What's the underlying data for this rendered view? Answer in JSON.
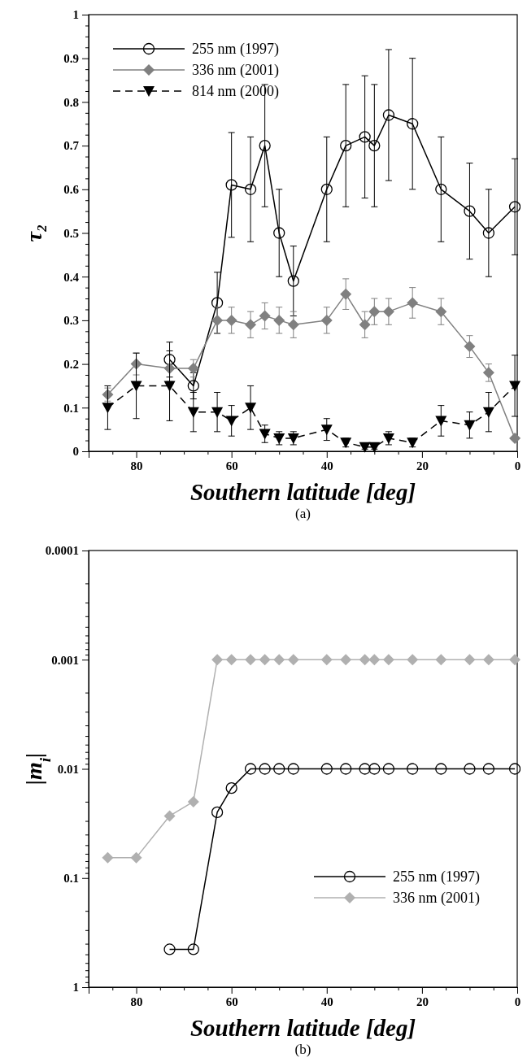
{
  "chart_data": [
    {
      "type": "line",
      "xlabel": "Southern latitude [deg]",
      "ylabel": "τ₂",
      "annotations": [
        "(a)"
      ],
      "legend": "top left",
      "xlim": [
        90,
        0
      ],
      "xticks": [
        {
          "value": 85,
          "label": null
        },
        80,
        {
          "value": 75,
          "label": null
        },
        {
          "value": 70,
          "label": null
        },
        {
          "value": 65,
          "label": null
        },
        60,
        {
          "value": 55,
          "label": null
        },
        {
          "value": 50,
          "label": null
        },
        {
          "value": 45,
          "label": null
        },
        40,
        {
          "value": 35,
          "label": null
        },
        {
          "value": 30,
          "label": null
        },
        {
          "value": 25,
          "label": null
        },
        20,
        {
          "value": 15,
          "label": null
        },
        {
          "value": 10,
          "label": null
        },
        {
          "value": 5,
          "label": null
        },
        0
      ],
      "ylim": [
        0,
        1
      ],
      "yticks": [
        0,
        {
          "value": 0.025,
          "label": null
        },
        {
          "value": 0.05,
          "label": null
        },
        {
          "value": 0.075,
          "label": null
        },
        0.1,
        {
          "value": 0.125,
          "label": null
        },
        {
          "value": 0.15,
          "label": null
        },
        {
          "value": 0.175,
          "label": null
        },
        0.2,
        {
          "value": 0.225,
          "label": null
        },
        {
          "value": 0.25,
          "label": null
        },
        {
          "value": 0.275,
          "label": null
        },
        0.3,
        {
          "value": 0.325,
          "label": null
        },
        {
          "value": 0.35,
          "label": null
        },
        {
          "value": 0.375,
          "label": null
        },
        0.4,
        {
          "value": 0.425,
          "label": null
        },
        {
          "value": 0.45,
          "label": null
        },
        {
          "value": 0.475,
          "label": null
        },
        0.5,
        {
          "value": 0.525,
          "label": null
        },
        {
          "value": 0.55,
          "label": null
        },
        {
          "value": 0.575,
          "label": null
        },
        0.6,
        {
          "value": 0.625,
          "label": null
        },
        {
          "value": 0.65,
          "label": null
        },
        {
          "value": 0.675,
          "label": null
        },
        0.7,
        {
          "value": 0.725,
          "label": null
        },
        {
          "value": 0.75,
          "label": null
        },
        {
          "value": 0.775,
          "label": null
        },
        0.8,
        {
          "value": 0.825,
          "label": null
        },
        {
          "value": 0.85,
          "label": null
        },
        {
          "value": 0.875,
          "label": null
        },
        0.9,
        {
          "value": 0.925,
          "label": null
        },
        {
          "value": 0.95,
          "label": null
        },
        {
          "value": 0.975,
          "label": null
        },
        1
      ],
      "series": [
        {
          "name": "255 nm (1997)",
          "color": "#000000",
          "marker": "circle",
          "line_style": "solid",
          "x": [
            73,
            68,
            63,
            60,
            56,
            53,
            50,
            47,
            40,
            36,
            32,
            30,
            27,
            22,
            16,
            10,
            6,
            0.5
          ],
          "values": [
            0.21,
            0.15,
            0.34,
            0.61,
            0.6,
            0.7,
            0.5,
            0.39,
            0.6,
            0.7,
            0.72,
            0.7,
            0.77,
            0.75,
            0.6,
            0.55,
            0.5,
            0.56
          ],
          "errors": [
            0.04,
            0.03,
            0.07,
            0.12,
            0.12,
            0.14,
            0.1,
            0.08,
            0.12,
            0.14,
            0.14,
            0.14,
            0.15,
            0.15,
            0.12,
            0.11,
            0.1,
            0.11
          ]
        },
        {
          "name": "336 nm (2001)",
          "color": "#808080",
          "marker": "diamond",
          "line_style": "solid",
          "x": [
            86,
            80,
            73,
            68,
            63,
            60,
            56,
            53,
            50,
            47,
            40,
            36,
            32,
            30,
            27,
            22,
            16,
            10,
            6,
            0.5
          ],
          "values": [
            0.13,
            0.2,
            0.19,
            0.19,
            0.3,
            0.3,
            0.29,
            0.31,
            0.3,
            0.29,
            0.3,
            0.36,
            0.29,
            0.32,
            0.32,
            0.34,
            0.32,
            0.24,
            0.18,
            0.03
          ],
          "errors": [
            0.015,
            0.025,
            0.03,
            0.02,
            0.03,
            0.03,
            0.03,
            0.03,
            0.03,
            0.03,
            0.03,
            0.035,
            0.03,
            0.03,
            0.03,
            0.035,
            0.03,
            0.025,
            0.02,
            null
          ]
        },
        {
          "name": "814 nm (2000)",
          "color": "#000000",
          "marker": "triangle",
          "line_style": "dashed",
          "x": [
            86,
            80,
            73,
            68,
            63,
            60,
            56,
            53,
            50,
            47,
            40,
            36,
            32,
            30,
            27,
            22,
            16,
            10,
            6,
            0.5
          ],
          "values": [
            0.1,
            0.15,
            0.15,
            0.09,
            0.09,
            0.07,
            0.1,
            0.04,
            0.03,
            0.03,
            0.05,
            0.02,
            0.01,
            0.01,
            0.03,
            0.02,
            0.07,
            0.06,
            0.09,
            0.15
          ],
          "errors": [
            0.05,
            0.075,
            0.08,
            0.045,
            0.045,
            0.035,
            0.05,
            0.02,
            0.015,
            0.015,
            0.025,
            0.01,
            0.005,
            0.005,
            0.015,
            0.01,
            0.035,
            0.03,
            0.045,
            0.07
          ]
        }
      ]
    },
    {
      "type": "line",
      "xlabel": "Southern latitude [deg]",
      "ylabel": "|m$_{i}$|",
      "annotations": [
        "(b)"
      ],
      "legend": "bottom right",
      "log": true,
      "xlim": [
        90,
        0
      ],
      "xticks": [
        {
          "value": 85,
          "label": null
        },
        80,
        {
          "value": 75,
          "label": null
        },
        {
          "value": 70,
          "label": null
        },
        {
          "value": 65,
          "label": null
        },
        60,
        {
          "value": 55,
          "label": null
        },
        {
          "value": 50,
          "label": null
        },
        {
          "value": 45,
          "label": null
        },
        40,
        {
          "value": 35,
          "label": null
        },
        {
          "value": 30,
          "label": null
        },
        {
          "value": 25,
          "label": null
        },
        20,
        {
          "value": 15,
          "label": null
        },
        {
          "value": 10,
          "label": null
        },
        {
          "value": 5,
          "label": null
        },
        0
      ],
      "ylim": [
        1,
        0.0001
      ],
      "yticks": [
        0.0001,
        {
          "value": 0.0002,
          "label": null
        },
        {
          "value": 0.0003,
          "label": null
        },
        {
          "value": 0.0004,
          "label": null
        },
        {
          "value": 0.0005,
          "label": null
        },
        {
          "value": 0.0006,
          "label": null
        },
        {
          "value": 0.0007,
          "label": null
        },
        {
          "value": 0.0008,
          "label": null
        },
        {
          "value": 0.0009,
          "label": null
        },
        0.001,
        {
          "value": 0.002,
          "label": null
        },
        {
          "value": 0.003,
          "label": null
        },
        {
          "value": 0.004,
          "label": null
        },
        {
          "value": 0.005,
          "label": null
        },
        {
          "value": 0.006,
          "label": null
        },
        {
          "value": 0.007,
          "label": null
        },
        {
          "value": 0.008,
          "label": null
        },
        {
          "value": 0.009,
          "label": null
        },
        0.01,
        {
          "value": 0.02,
          "label": null
        },
        {
          "value": 0.03,
          "label": null
        },
        {
          "value": 0.04,
          "label": null
        },
        {
          "value": 0.05,
          "label": null
        },
        {
          "value": 0.06,
          "label": null
        },
        {
          "value": 0.07,
          "label": null
        },
        {
          "value": 0.08,
          "label": null
        },
        {
          "value": 0.09,
          "label": null
        },
        0.1,
        {
          "value": 0.2,
          "label": null
        },
        {
          "value": 0.3,
          "label": null
        },
        {
          "value": 0.4,
          "label": null
        },
        {
          "value": 0.5,
          "label": null
        },
        {
          "value": 0.6,
          "label": null
        },
        {
          "value": 0.7,
          "label": null
        },
        {
          "value": 0.8,
          "label": null
        },
        {
          "value": 0.9,
          "label": null
        },
        1
      ],
      "series": [
        {
          "name": "255 nm (1997)",
          "color": "#000000",
          "marker": "circle",
          "line_style": "solid",
          "x": [
            73,
            68,
            63,
            60,
            56,
            53,
            50,
            47,
            40,
            36,
            32,
            30,
            27,
            22,
            16,
            10,
            6,
            0.5
          ],
          "values": [
            0.45,
            0.45,
            0.025,
            0.015,
            0.01,
            0.01,
            0.01,
            0.01,
            0.01,
            0.01,
            0.01,
            0.01,
            0.01,
            0.01,
            0.01,
            0.01,
            0.01,
            0.01
          ]
        },
        {
          "name": "336 nm (2001)",
          "color": "#b0b0b0",
          "marker": "diamond",
          "line_style": "solid",
          "x": [
            86,
            80,
            73,
            68,
            63,
            60,
            56,
            53,
            50,
            47,
            40,
            36,
            32,
            30,
            27,
            22,
            16,
            10,
            6,
            0.5
          ],
          "values": [
            0.065,
            0.065,
            0.027,
            0.02,
            0.001,
            0.001,
            0.001,
            0.001,
            0.001,
            0.001,
            0.001,
            0.001,
            0.001,
            0.001,
            0.001,
            0.001,
            0.001,
            0.001,
            0.001,
            0.001
          ]
        }
      ]
    }
  ]
}
